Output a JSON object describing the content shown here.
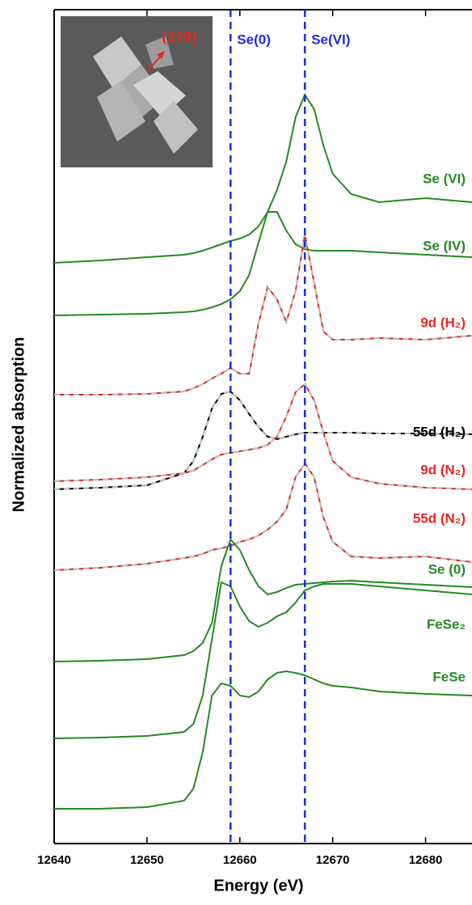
{
  "chart_data": {
    "type": "line",
    "xlabel": "Energy (eV)",
    "ylabel": "Normalized absorption",
    "xlim": [
      12640,
      12685
    ],
    "xticks": [
      12640,
      12650,
      12660,
      12670,
      12680
    ],
    "ylim": [
      0,
      10.31
    ],
    "reference_lines": [
      {
        "x": 12659,
        "label": "Se(0)",
        "color": "#1f2fd6"
      },
      {
        "x": 12667,
        "label": "Se(VI)",
        "color": "#1f2fd6"
      }
    ],
    "inset_label": "(210)",
    "x": [
      12640,
      12645,
      12650,
      12654,
      12655,
      12656,
      12657,
      12658,
      12659,
      12660,
      12661,
      12662,
      12663,
      12664,
      12665,
      12666,
      12667,
      12668,
      12669,
      12670,
      12672,
      12675,
      12680,
      12685
    ],
    "series": [
      {
        "name": "Se (VI)",
        "color": "#228b22",
        "label_color": "#228b22",
        "fit": false,
        "values": [
          7.18,
          7.21,
          7.25,
          7.28,
          7.3,
          7.33,
          7.37,
          7.41,
          7.45,
          7.48,
          7.53,
          7.63,
          7.81,
          8.08,
          8.43,
          8.98,
          9.26,
          9.08,
          8.63,
          8.28,
          8.03,
          7.93,
          7.98,
          7.93
        ]
      },
      {
        "name": "Se (IV)",
        "color": "#228b22",
        "label_color": "#228b22",
        "fit": false,
        "values": [
          6.53,
          6.54,
          6.55,
          6.57,
          6.58,
          6.6,
          6.63,
          6.67,
          6.73,
          6.83,
          7.03,
          7.43,
          7.81,
          7.81,
          7.58,
          7.41,
          7.35,
          7.33,
          7.33,
          7.33,
          7.33,
          7.31,
          7.28,
          7.25
        ]
      },
      {
        "name": "9d (H₂)",
        "color": "#e8251f",
        "label_color": "#e8251f",
        "fit": true,
        "values": [
          5.55,
          5.55,
          5.56,
          5.59,
          5.63,
          5.68,
          5.75,
          5.81,
          5.88,
          5.81,
          5.81,
          6.43,
          6.88,
          6.73,
          6.45,
          6.83,
          7.53,
          6.93,
          6.33,
          6.23,
          6.23,
          6.25,
          6.23,
          6.28
        ]
      },
      {
        "name": "55d (H₂)",
        "color": "#000000",
        "label_color": "#000000",
        "fit": true,
        "values": [
          4.38,
          4.4,
          4.43,
          4.58,
          4.73,
          5.03,
          5.38,
          5.56,
          5.59,
          5.48,
          5.31,
          5.15,
          5.03,
          5.0,
          5.03,
          5.06,
          5.08,
          5.08,
          5.08,
          5.08,
          5.08,
          5.07,
          5.07,
          5.06
        ]
      },
      {
        "name": "9d (N₂)",
        "color": "#e8251f",
        "label_color": "#e8251f",
        "fit": true,
        "values": [
          4.48,
          4.5,
          4.53,
          4.58,
          4.61,
          4.68,
          4.75,
          4.81,
          4.83,
          4.85,
          4.87,
          4.89,
          4.93,
          5.03,
          5.28,
          5.58,
          5.68,
          5.48,
          5.08,
          4.73,
          4.53,
          4.45,
          4.4,
          4.38
        ]
      },
      {
        "name": "55d (N₂)",
        "color": "#e8251f",
        "label_color": "#e8251f",
        "fit": true,
        "values": [
          3.38,
          3.41,
          3.46,
          3.53,
          3.55,
          3.58,
          3.63,
          3.65,
          3.68,
          3.73,
          3.76,
          3.81,
          3.88,
          3.98,
          4.13,
          4.53,
          4.7,
          4.53,
          4.03,
          3.73,
          3.55,
          3.53,
          3.55,
          3.48
        ]
      },
      {
        "name": "Se (0)",
        "color": "#228b22",
        "label_color": "#228b22",
        "fit": false,
        "values": [
          2.25,
          2.26,
          2.28,
          2.33,
          2.38,
          2.48,
          2.73,
          3.43,
          3.76,
          3.63,
          3.38,
          3.18,
          3.08,
          3.11,
          3.16,
          3.2,
          3.21,
          3.22,
          3.23,
          3.24,
          3.25,
          3.23,
          3.2,
          3.17
        ]
      },
      {
        "name": "FeSe₂",
        "color": "#228b22",
        "label_color": "#228b22",
        "fit": false,
        "values": [
          1.3,
          1.31,
          1.33,
          1.38,
          1.48,
          1.83,
          2.53,
          3.23,
          3.18,
          2.93,
          2.75,
          2.68,
          2.73,
          2.81,
          2.86,
          2.98,
          3.13,
          3.18,
          3.21,
          3.21,
          3.21,
          3.18,
          3.13,
          3.08
        ]
      },
      {
        "name": "FeSe",
        "color": "#228b22",
        "label_color": "#228b22",
        "fit": false,
        "values": [
          0.43,
          0.43,
          0.45,
          0.53,
          0.68,
          1.13,
          1.83,
          1.98,
          1.95,
          1.83,
          1.81,
          1.88,
          2.03,
          2.11,
          2.13,
          2.11,
          2.08,
          2.03,
          1.98,
          1.95,
          1.93,
          1.88,
          1.85,
          1.83
        ]
      }
    ]
  }
}
